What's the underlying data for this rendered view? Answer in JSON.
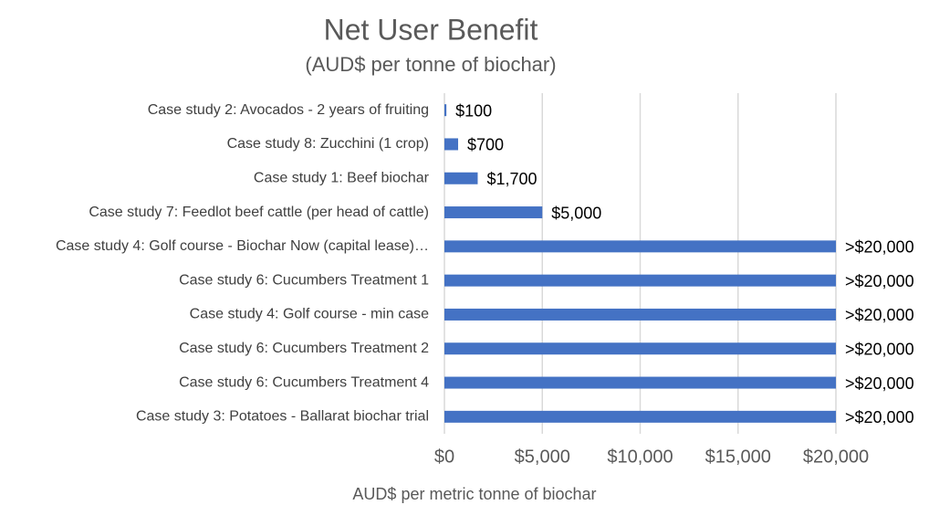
{
  "chart_data": {
    "type": "bar",
    "orientation": "horizontal",
    "title": "Net User Benefit",
    "subtitle": "(AUD$ per tonne of biochar)",
    "x_label": "AUD$ per metric tonne of biochar",
    "categories": [
      "Case study 2: Avocados - 2 years of fruiting",
      "Case study 8: Zucchini (1 crop)",
      "Case study 1: Beef biochar",
      "Case study 7: Feedlot beef cattle (per head of cattle)",
      "Case study 4: Golf course - Biochar Now (capital lease)…",
      "Case study 6: Cucumbers Treatment 1",
      "Case study 4: Golf course - min case",
      "Case study 6: Cucumbers Treatment 2",
      "Case study 6: Cucumbers Treatment 4",
      "Case study 3: Potatoes - Ballarat biochar trial"
    ],
    "values": [
      100,
      700,
      1700,
      5000,
      20000,
      20000,
      20000,
      20000,
      20000,
      20000
    ],
    "value_labels": [
      "$100",
      "$700",
      "$1,700",
      "$5,000",
      ">$20,000",
      ">$20,000",
      ">$20,000",
      ">$20,000",
      ">$20,000",
      ">$20,000"
    ],
    "color": "#4472c4",
    "xlim": [
      0,
      20000
    ],
    "xticks": [
      {
        "value": 0,
        "label": "$0"
      },
      {
        "value": 5000,
        "label": "$5,000"
      },
      {
        "value": 10000,
        "label": "$10,000"
      },
      {
        "value": 15000,
        "label": "$15,000"
      },
      {
        "value": 20000,
        "label": "$20,000"
      }
    ],
    "grid": true
  }
}
